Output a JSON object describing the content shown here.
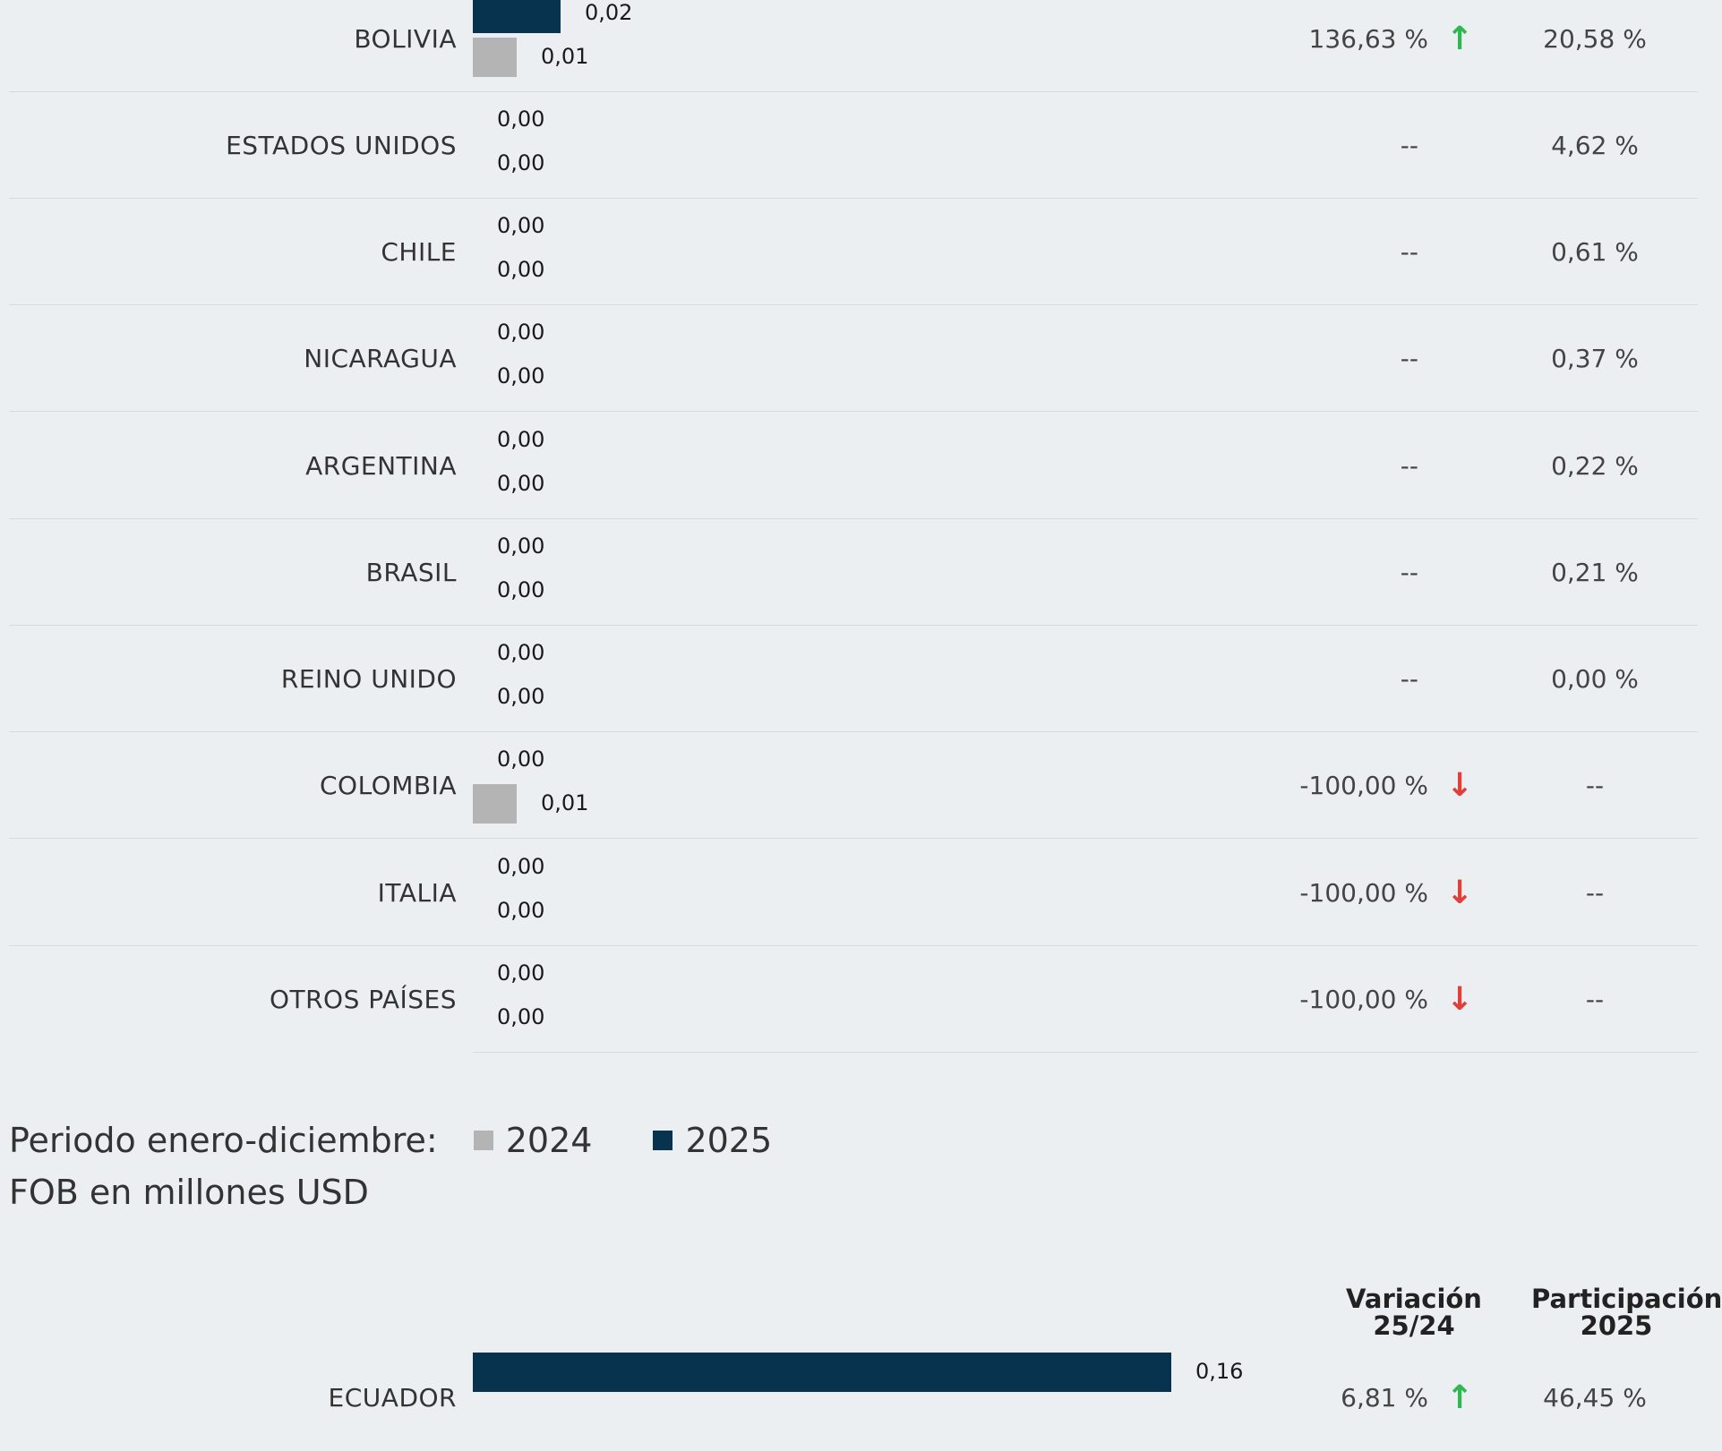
{
  "chart_data": {
    "type": "bar",
    "orientation": "horizontal",
    "series": [
      {
        "name": "2025",
        "color": "#08334f"
      },
      {
        "name": "2024",
        "color": "#b4b4b4"
      }
    ],
    "rows": [
      {
        "country": "BOLIVIA",
        "v2025": 0.02,
        "v2024": 0.01,
        "label2025": "0,02",
        "label2024": "0,01",
        "variation": "136,63 %",
        "trend": "up",
        "share": "20,58 %"
      },
      {
        "country": "ESTADOS UNIDOS",
        "v2025": 0,
        "v2024": 0,
        "label2025": "0,00",
        "label2024": "0,00",
        "variation": "--",
        "trend": "none",
        "share": "4,62 %"
      },
      {
        "country": "CHILE",
        "v2025": 0,
        "v2024": 0,
        "label2025": "0,00",
        "label2024": "0,00",
        "variation": "--",
        "trend": "none",
        "share": "0,61 %"
      },
      {
        "country": "NICARAGUA",
        "v2025": 0,
        "v2024": 0,
        "label2025": "0,00",
        "label2024": "0,00",
        "variation": "--",
        "trend": "none",
        "share": "0,37 %"
      },
      {
        "country": "ARGENTINA",
        "v2025": 0,
        "v2024": 0,
        "label2025": "0,00",
        "label2024": "0,00",
        "variation": "--",
        "trend": "none",
        "share": "0,22 %"
      },
      {
        "country": "BRASIL",
        "v2025": 0,
        "v2024": 0,
        "label2025": "0,00",
        "label2024": "0,00",
        "variation": "--",
        "trend": "none",
        "share": "0,21 %"
      },
      {
        "country": "REINO UNIDO",
        "v2025": 0,
        "v2024": 0,
        "label2025": "0,00",
        "label2024": "0,00",
        "variation": "--",
        "trend": "none",
        "share": "0,00 %"
      },
      {
        "country": "COLOMBIA",
        "v2025": 0,
        "v2024": 0.01,
        "label2025": "0,00",
        "label2024": "0,01",
        "variation": "-100,00 %",
        "trend": "down",
        "share": "--"
      },
      {
        "country": "ITALIA",
        "v2025": 0,
        "v2024": 0,
        "label2025": "0,00",
        "label2024": "0,00",
        "variation": "-100,00 %",
        "trend": "down",
        "share": "--"
      },
      {
        "country": "OTROS PAÍSES",
        "v2025": 0,
        "v2024": 0,
        "label2025": "0,00",
        "label2024": "0,00",
        "variation": "-100,00 %",
        "trend": "down",
        "share": "--"
      },
      {
        "country": "ECUADOR",
        "v2025": 0.16,
        "v2024": null,
        "label2025": "0,16",
        "label2024": "",
        "variation": "6,81 %",
        "trend": "up",
        "share": "46,45 %"
      }
    ],
    "legend": {
      "prefix": "Periodo enero-diciembre:",
      "items": [
        "2024",
        "2025"
      ]
    },
    "unit_label": "FOB en millones USD",
    "column_headers": {
      "variation": "Variación\n25/24",
      "share": "Participación\n2025"
    }
  },
  "colors": {
    "bar_2025": "#08334f",
    "bar_2024": "#b4b4b4",
    "up": "#2fb84f",
    "down": "#e0403a",
    "background": "#eceff2"
  },
  "icons": {
    "up": "arrow-up-icon",
    "down": "arrow-down-icon"
  }
}
